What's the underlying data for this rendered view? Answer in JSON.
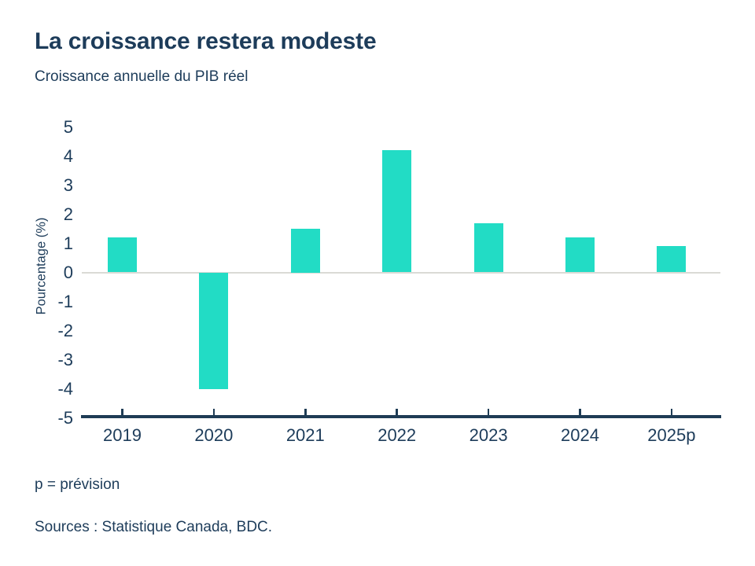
{
  "header": {
    "title": "La croissance restera modeste",
    "subtitle": "Croissance annuelle du PIB réel"
  },
  "chart_data": {
    "type": "bar",
    "title": "La croissance restera modeste",
    "subtitle": "Croissance annuelle du PIB réel",
    "categories": [
      "2019",
      "2020",
      "2021",
      "2022",
      "2023",
      "2024",
      "2025p"
    ],
    "values": [
      1.2,
      -4.0,
      1.5,
      4.2,
      1.7,
      1.2,
      0.9
    ],
    "xlabel": "",
    "ylabel": "Pourcentage (%)",
    "ylim": [
      -5,
      5
    ],
    "yticks": [
      5,
      4,
      3,
      2,
      1,
      0,
      -1,
      -2,
      -3,
      -4,
      -5
    ],
    "grid": false,
    "legend": false,
    "colors": {
      "bar": "#22dcc5",
      "axis": "#1e3c55",
      "text": "#1d3c5a",
      "zero_line": "#dadad5",
      "background": "#ffffff"
    }
  },
  "footer": {
    "note": "p = prévision",
    "sources": "Sources : Statistique Canada, BDC."
  }
}
